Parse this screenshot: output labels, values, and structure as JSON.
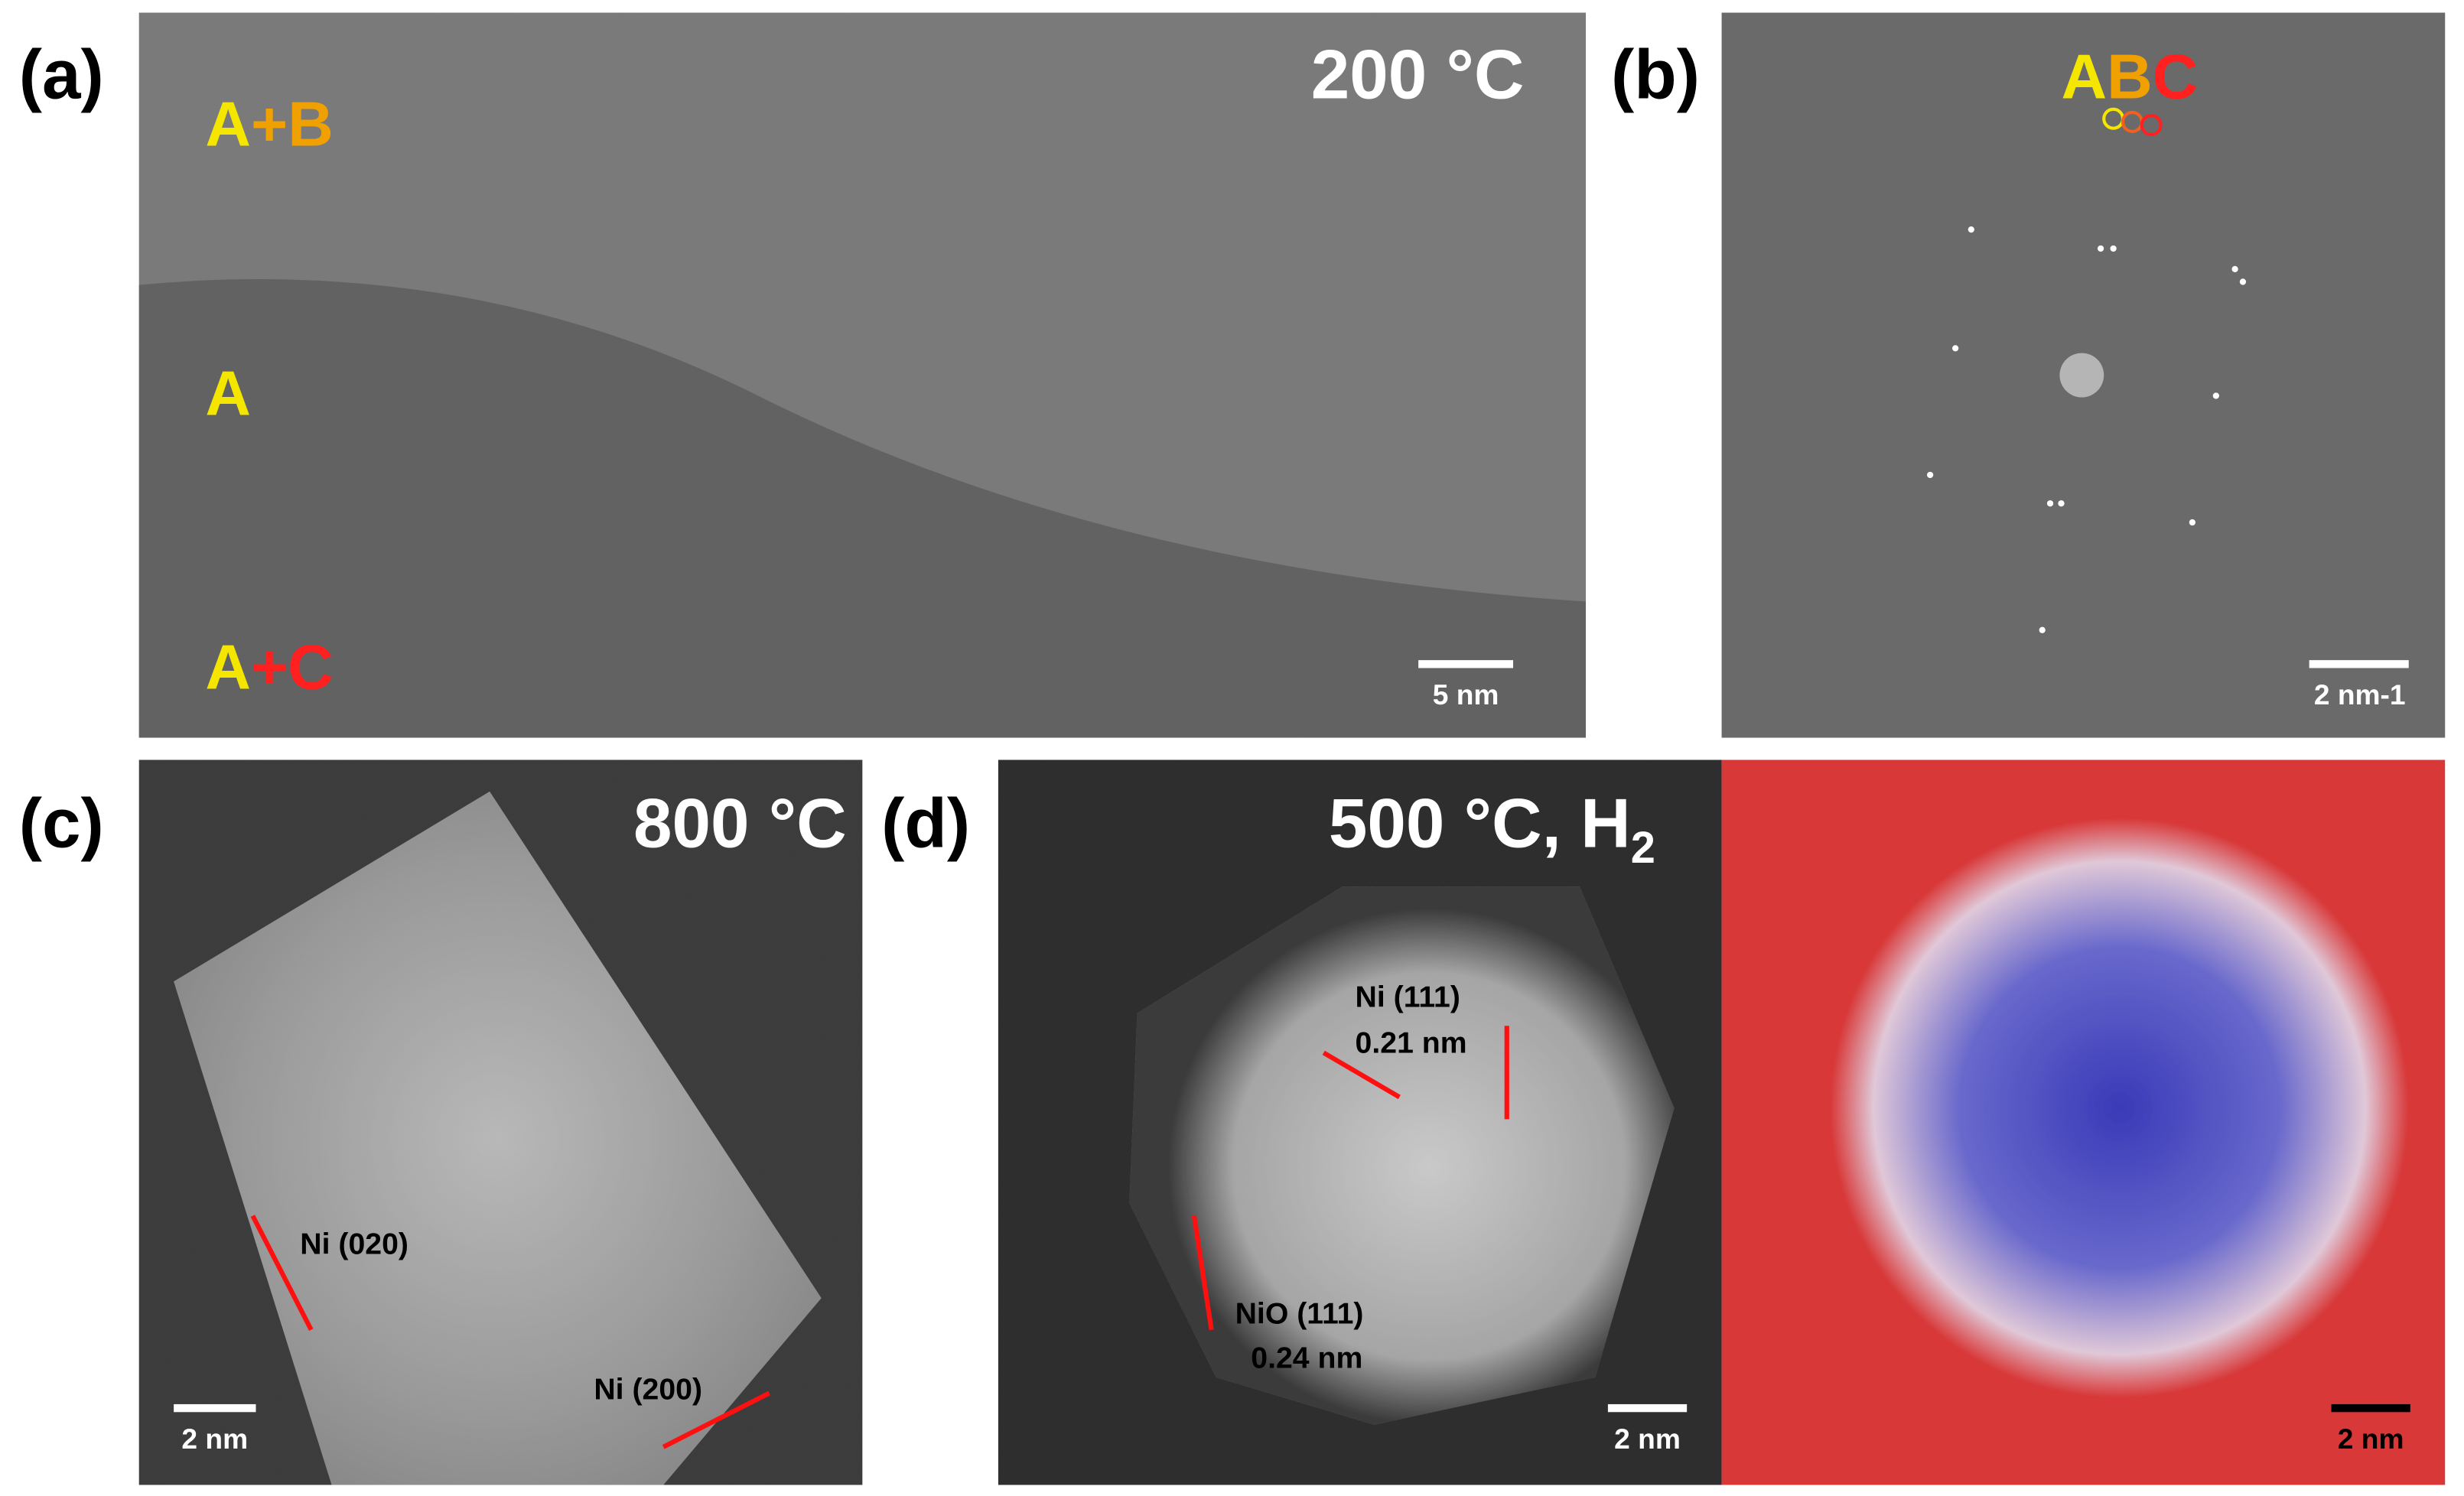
{
  "panels": [
    {
      "label": "(a)",
      "condition": "200 °C",
      "phase_labels": [
        [
          "A",
          "+B"
        ],
        [
          "A"
        ],
        [
          "A",
          "+C"
        ]
      ],
      "scale_bar": "5 nm"
    },
    {
      "label": "(b)",
      "spots": [
        "A",
        "B",
        "C"
      ],
      "scale_bar": "2 nm-1"
    },
    {
      "label": "(c)",
      "condition": "800 °C",
      "annotations": [
        "Ni (020)",
        "Ni (200)"
      ],
      "scale_bar": "2 nm"
    },
    {
      "label": "(d)",
      "condition": "500 °C, H",
      "condition_subscript": "2",
      "annotations": [
        "Ni (111)",
        "0.21 nm",
        "NiO (111)",
        "0.24 nm"
      ],
      "scale_bar": "2 nm",
      "map_scale_bar": "2 nm"
    }
  ]
}
